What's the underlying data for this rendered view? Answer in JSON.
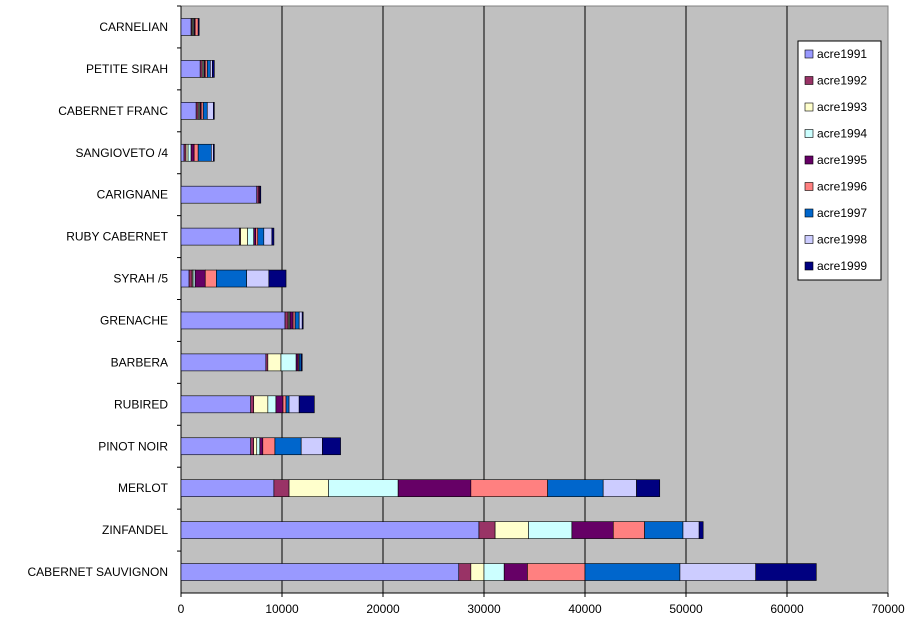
{
  "chart_data": {
    "type": "bar",
    "orientation": "horizontal",
    "stacked": true,
    "categories": [
      "CARNELIAN",
      "PETITE SIRAH",
      "CABERNET FRANC",
      "SANGIOVETO /4",
      "CARIGNANE",
      "RUBY CABERNET",
      "SYRAH /5",
      "GRENACHE",
      "BARBERA",
      "RUBIRED",
      "PINOT NOIR",
      "MERLOT",
      "ZINFANDEL",
      "CABERNET SAUVIGNON"
    ],
    "series": [
      {
        "name": "acre1991",
        "color": "#9999ff",
        "values": [
          1000,
          1900,
          1500,
          300,
          7500,
          5800,
          800,
          10300,
          8400,
          6900,
          6900,
          9200,
          29500,
          27500
        ]
      },
      {
        "name": "acre1992",
        "color": "#993366",
        "values": [
          100,
          200,
          200,
          200,
          200,
          100,
          300,
          300,
          200,
          300,
          300,
          1500,
          1600,
          1200
        ]
      },
      {
        "name": "acre1993",
        "color": "#ffffcc",
        "values": [
          100,
          100,
          100,
          200,
          0,
          700,
          100,
          100,
          1300,
          1400,
          300,
          3900,
          3300,
          1300
        ]
      },
      {
        "name": "acre1994",
        "color": "#ccffff",
        "values": [
          100,
          100,
          100,
          300,
          0,
          600,
          200,
          100,
          1500,
          800,
          300,
          6900,
          4300,
          2000
        ]
      },
      {
        "name": "acre1995",
        "color": "#660066",
        "values": [
          100,
          100,
          100,
          300,
          100,
          200,
          1000,
          300,
          200,
          700,
          300,
          7200,
          4100,
          2300
        ]
      },
      {
        "name": "acre1996",
        "color": "#ff8080",
        "values": [
          300,
          200,
          200,
          400,
          0,
          200,
          1100,
          200,
          100,
          300,
          1200,
          7600,
          3100,
          5700
        ]
      },
      {
        "name": "acre1997",
        "color": "#0066cc",
        "values": [
          0,
          300,
          400,
          1300,
          0,
          600,
          3000,
          400,
          200,
          300,
          2600,
          5500,
          3800,
          9400
        ]
      },
      {
        "name": "acre1998",
        "color": "#ccccff",
        "values": [
          0,
          200,
          600,
          200,
          0,
          800,
          2200,
          300,
          0,
          1000,
          2100,
          3300,
          1600,
          7500
        ]
      },
      {
        "name": "acre1999",
        "color": "#000080",
        "values": [
          100,
          200,
          100,
          100,
          100,
          200,
          1700,
          100,
          100,
          1500,
          1800,
          2300,
          400,
          6000
        ]
      }
    ],
    "xlim": [
      0,
      70000
    ],
    "xticks": [
      "0",
      "10000",
      "20000",
      "30000",
      "40000",
      "50000",
      "60000",
      "70000"
    ],
    "grid": true,
    "plot_background": "#c0c0c0",
    "legend_position": "right"
  }
}
